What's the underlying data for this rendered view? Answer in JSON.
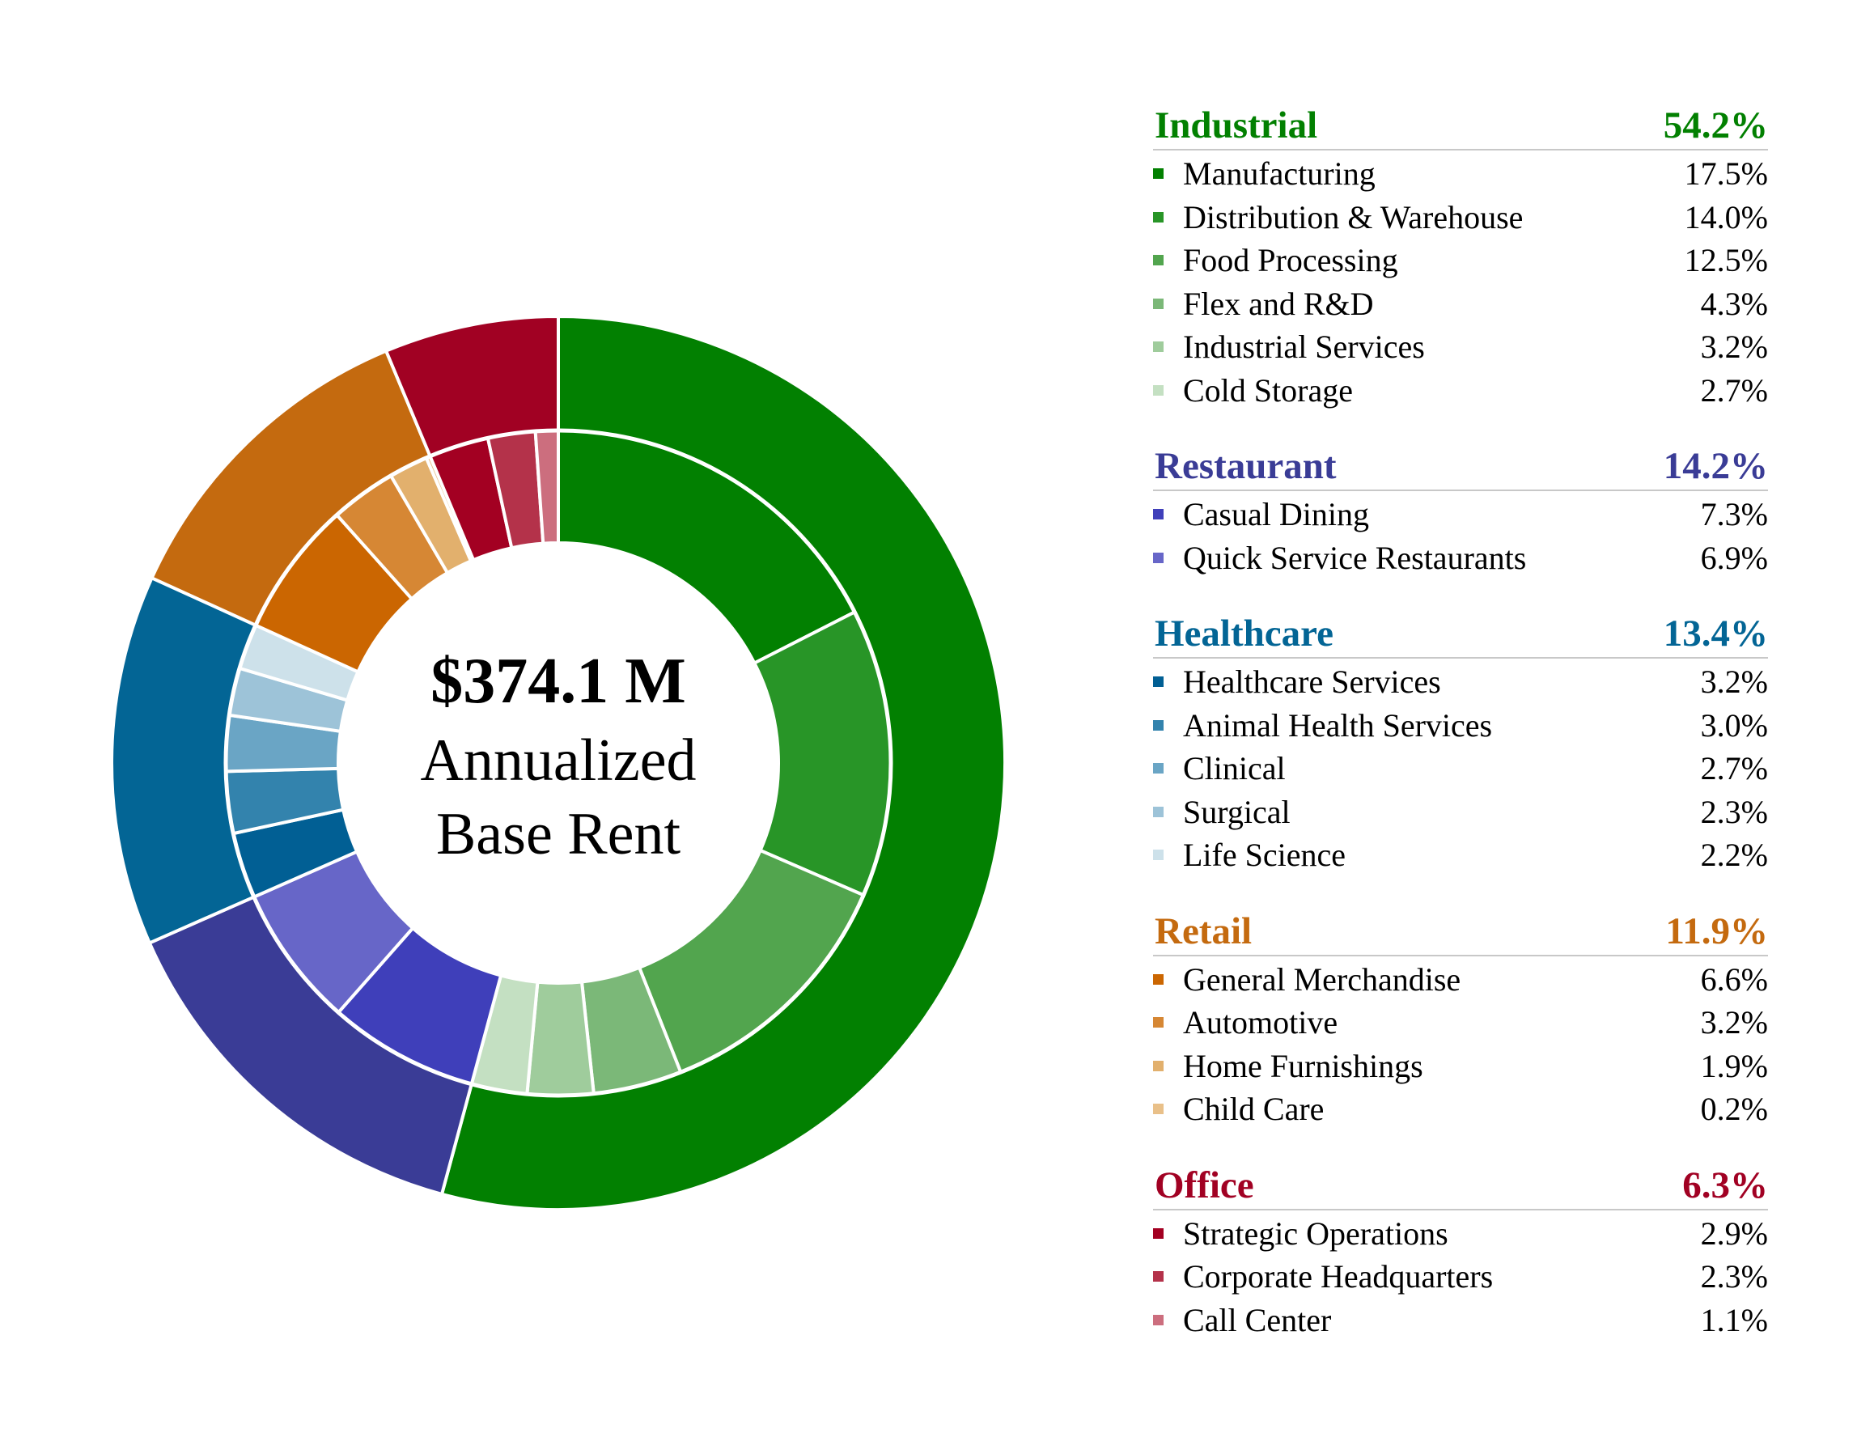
{
  "chart_data": {
    "type": "pie",
    "subtype": "nested-donut",
    "center_label": {
      "amount": "$374.1 M",
      "line1": "Annualized",
      "line2": "Base Rent"
    },
    "groups": [
      {
        "name": "Industrial",
        "value": 54.2,
        "value_label": "54.2%",
        "color": "#028001",
        "items": [
          {
            "name": "Manufacturing",
            "value": 17.5,
            "value_label": "17.5%",
            "color": "#028001"
          },
          {
            "name": "Distribution & Warehouse",
            "value": 14.0,
            "value_label": "14.0%",
            "color": "#289527"
          },
          {
            "name": "Food Processing",
            "value": 12.5,
            "value_label": "12.5%",
            "color": "#52a54e"
          },
          {
            "name": "Flex and R&D",
            "value": 4.3,
            "value_label": "4.3%",
            "color": "#7bb878"
          },
          {
            "name": "Industrial Services",
            "value": 3.2,
            "value_label": "3.2%",
            "color": "#9fcc9c"
          },
          {
            "name": "Cold Storage",
            "value": 2.7,
            "value_label": "2.7%",
            "color": "#c4e0c2"
          }
        ]
      },
      {
        "name": "Restaurant",
        "value": 14.2,
        "value_label": "14.2%",
        "color": "#3a3c96",
        "items": [
          {
            "name": "Casual Dining",
            "value": 7.3,
            "value_label": "7.3%",
            "color": "#3f3fba"
          },
          {
            "name": "Quick Service Restaurants",
            "value": 6.9,
            "value_label": "6.9%",
            "color": "#6766c8"
          }
        ]
      },
      {
        "name": "Healthcare",
        "value": 13.4,
        "value_label": "13.4%",
        "color": "#036595",
        "items": [
          {
            "name": "Healthcare Services",
            "value": 3.2,
            "value_label": "3.2%",
            "color": "#015f94"
          },
          {
            "name": "Animal Health Services",
            "value": 3.0,
            "value_label": "3.0%",
            "color": "#3383ad"
          },
          {
            "name": "Clinical",
            "value": 2.7,
            "value_label": "2.7%",
            "color": "#6aa5c5"
          },
          {
            "name": "Surgical",
            "value": 2.3,
            "value_label": "2.3%",
            "color": "#9dc3d8"
          },
          {
            "name": "Life Science",
            "value": 2.2,
            "value_label": "2.2%",
            "color": "#cde1ea"
          }
        ]
      },
      {
        "name": "Retail",
        "value": 11.9,
        "value_label": "11.9%",
        "color": "#c46a0f",
        "items": [
          {
            "name": "General Merchandise",
            "value": 6.6,
            "value_label": "6.6%",
            "color": "#cb6601"
          },
          {
            "name": "Automotive",
            "value": 3.2,
            "value_label": "3.2%",
            "color": "#d68734"
          },
          {
            "name": "Home Furnishings",
            "value": 1.9,
            "value_label": "1.9%",
            "color": "#e2b06d"
          },
          {
            "name": "Child Care",
            "value": 0.2,
            "value_label": "0.2%",
            "color": "#e9c089"
          }
        ]
      },
      {
        "name": "Office",
        "value": 6.3,
        "value_label": "6.3%",
        "color": "#a10123",
        "items": [
          {
            "name": "Strategic Operations",
            "value": 2.9,
            "value_label": "2.9%",
            "color": "#a30022"
          },
          {
            "name": "Corporate Headquarters",
            "value": 2.3,
            "value_label": "2.3%",
            "color": "#b4324a"
          },
          {
            "name": "Call Center",
            "value": 1.1,
            "value_label": "1.1%",
            "color": "#cc6e7e"
          }
        ]
      }
    ]
  }
}
